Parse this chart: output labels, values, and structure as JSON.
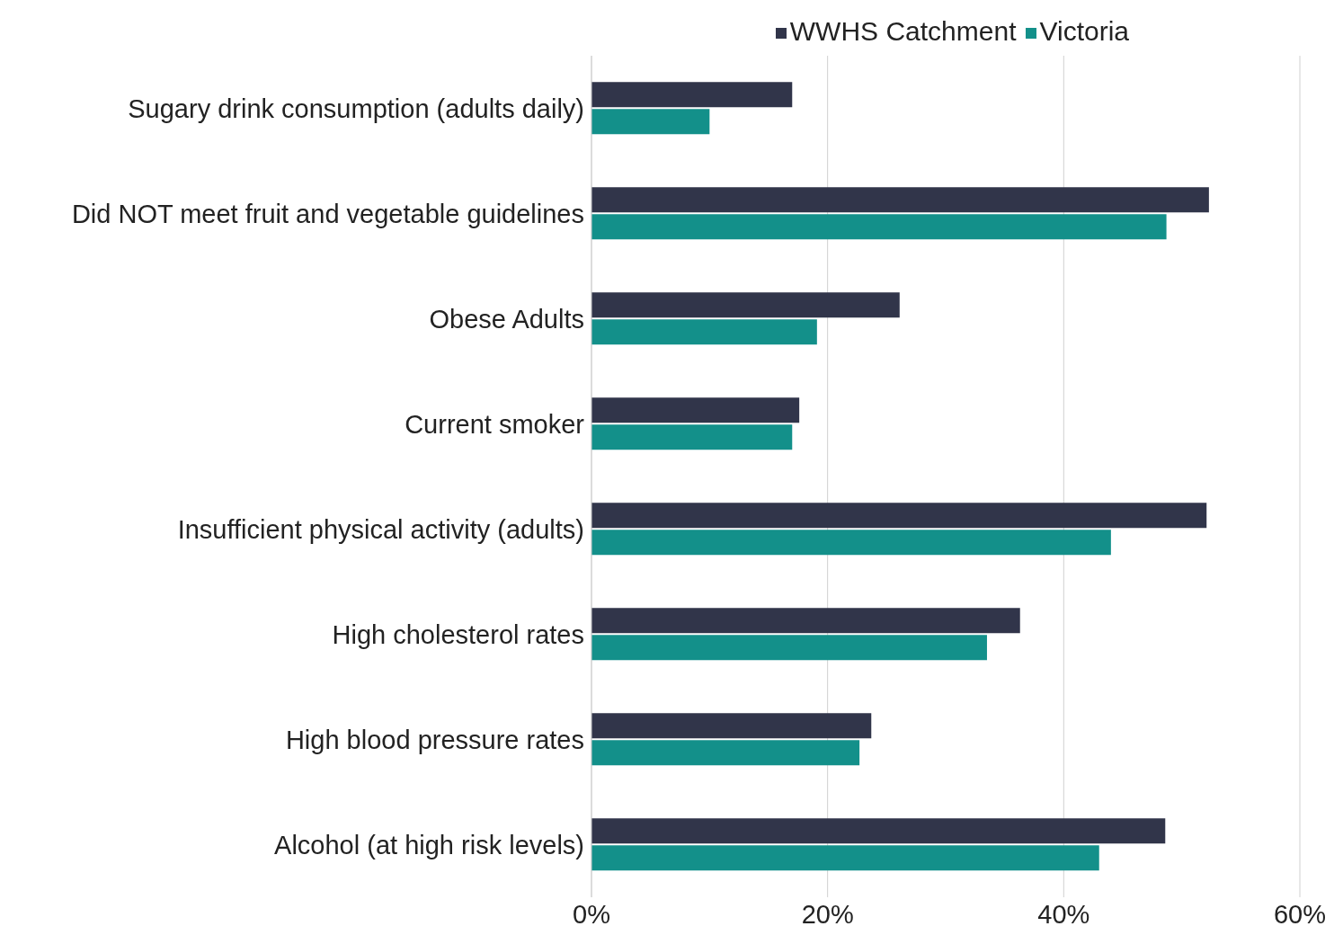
{
  "chart_data": {
    "type": "bar",
    "orientation": "horizontal",
    "categories": [
      "Sugary drink consumption (adults daily)",
      "Did NOT meet fruit and vegetable guidelines",
      "Obese Adults",
      "Current smoker",
      "Insufficient physical activity (adults)",
      "High cholesterol rates",
      "High blood pressure rates",
      "Alcohol (at high risk levels)"
    ],
    "series": [
      {
        "name": "WWHS Catchment",
        "color": "#31354a",
        "values": [
          17.0,
          52.3,
          26.1,
          17.6,
          52.1,
          36.3,
          23.7,
          48.6
        ]
      },
      {
        "name": "Victoria",
        "color": "#13908a",
        "values": [
          10.0,
          48.7,
          19.1,
          17.0,
          44.0,
          33.5,
          22.7,
          43.0
        ]
      }
    ],
    "xlim": [
      0,
      60
    ],
    "xticks": [
      {
        "value": 0,
        "label": "0%"
      },
      {
        "value": 20,
        "label": "20%"
      },
      {
        "value": 40,
        "label": "40%"
      },
      {
        "value": 60,
        "label": "60%"
      }
    ],
    "grid": "x",
    "legend": "top right"
  }
}
